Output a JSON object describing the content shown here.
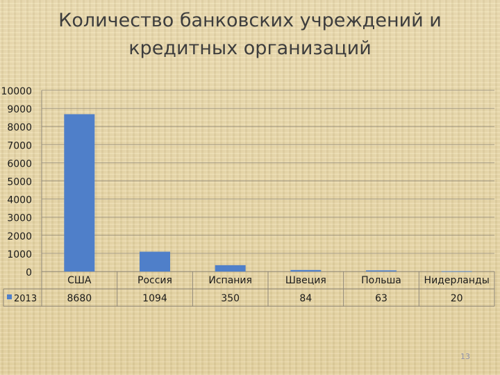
{
  "title": "Количество банковских учреждений и кредитных организаций",
  "slide_number": "13",
  "colors": {
    "bar": "#4f7fc9",
    "grid": "#8e8677",
    "text": "#1a1a1a",
    "title": "#3d3d3d"
  },
  "chart_data": {
    "type": "bar",
    "title": "Количество банковских учреждений и кредитных организаций",
    "categories": [
      "США",
      "Россия",
      "Испания",
      "Швеция",
      "Польша",
      "Нидерланды"
    ],
    "series": [
      {
        "name": "2013",
        "values": [
          8680,
          1094,
          350,
          84,
          63,
          20
        ]
      }
    ],
    "value_labels": [
      "8680",
      "1094",
      "350",
      "84",
      "63",
      "20"
    ],
    "ylim": [
      0,
      10000
    ],
    "yticks": [
      "0",
      "1000",
      "2000",
      "3000",
      "4000",
      "5000",
      "6000",
      "7000",
      "8000",
      "9000",
      "10000"
    ],
    "grid": true,
    "legend": "data-table-left",
    "data_table": true,
    "xlabel": "",
    "ylabel": ""
  }
}
